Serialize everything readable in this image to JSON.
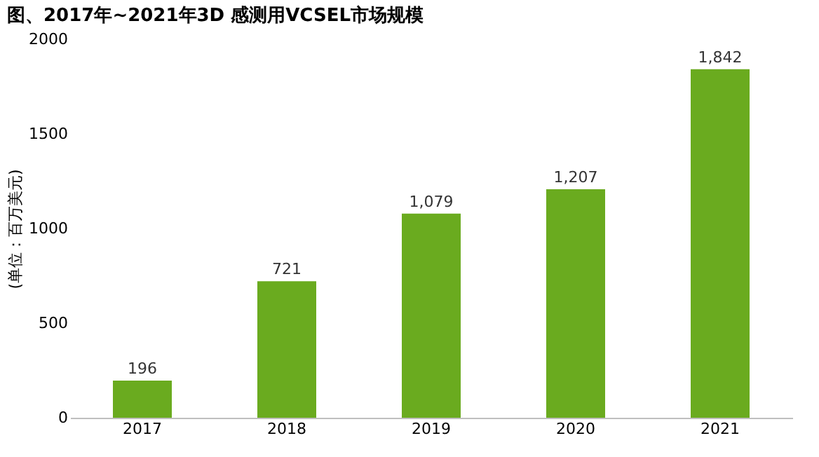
{
  "chart_data": {
    "type": "bar",
    "title": "图、2017年~2021年3D 感测用VCSEL市场规模",
    "ylabel": "(单位：百万美元)",
    "categories": [
      "2017",
      "2018",
      "2019",
      "2020",
      "2021"
    ],
    "values": [
      196,
      721,
      1079,
      1207,
      1842
    ],
    "value_labels": [
      "196",
      "721",
      "1,079",
      "1,207",
      "1,842"
    ],
    "color": "#6aab1f",
    "ylim": [
      0,
      2000
    ],
    "yticks": [
      0,
      500,
      1000,
      1500,
      2000
    ],
    "grid": false
  }
}
